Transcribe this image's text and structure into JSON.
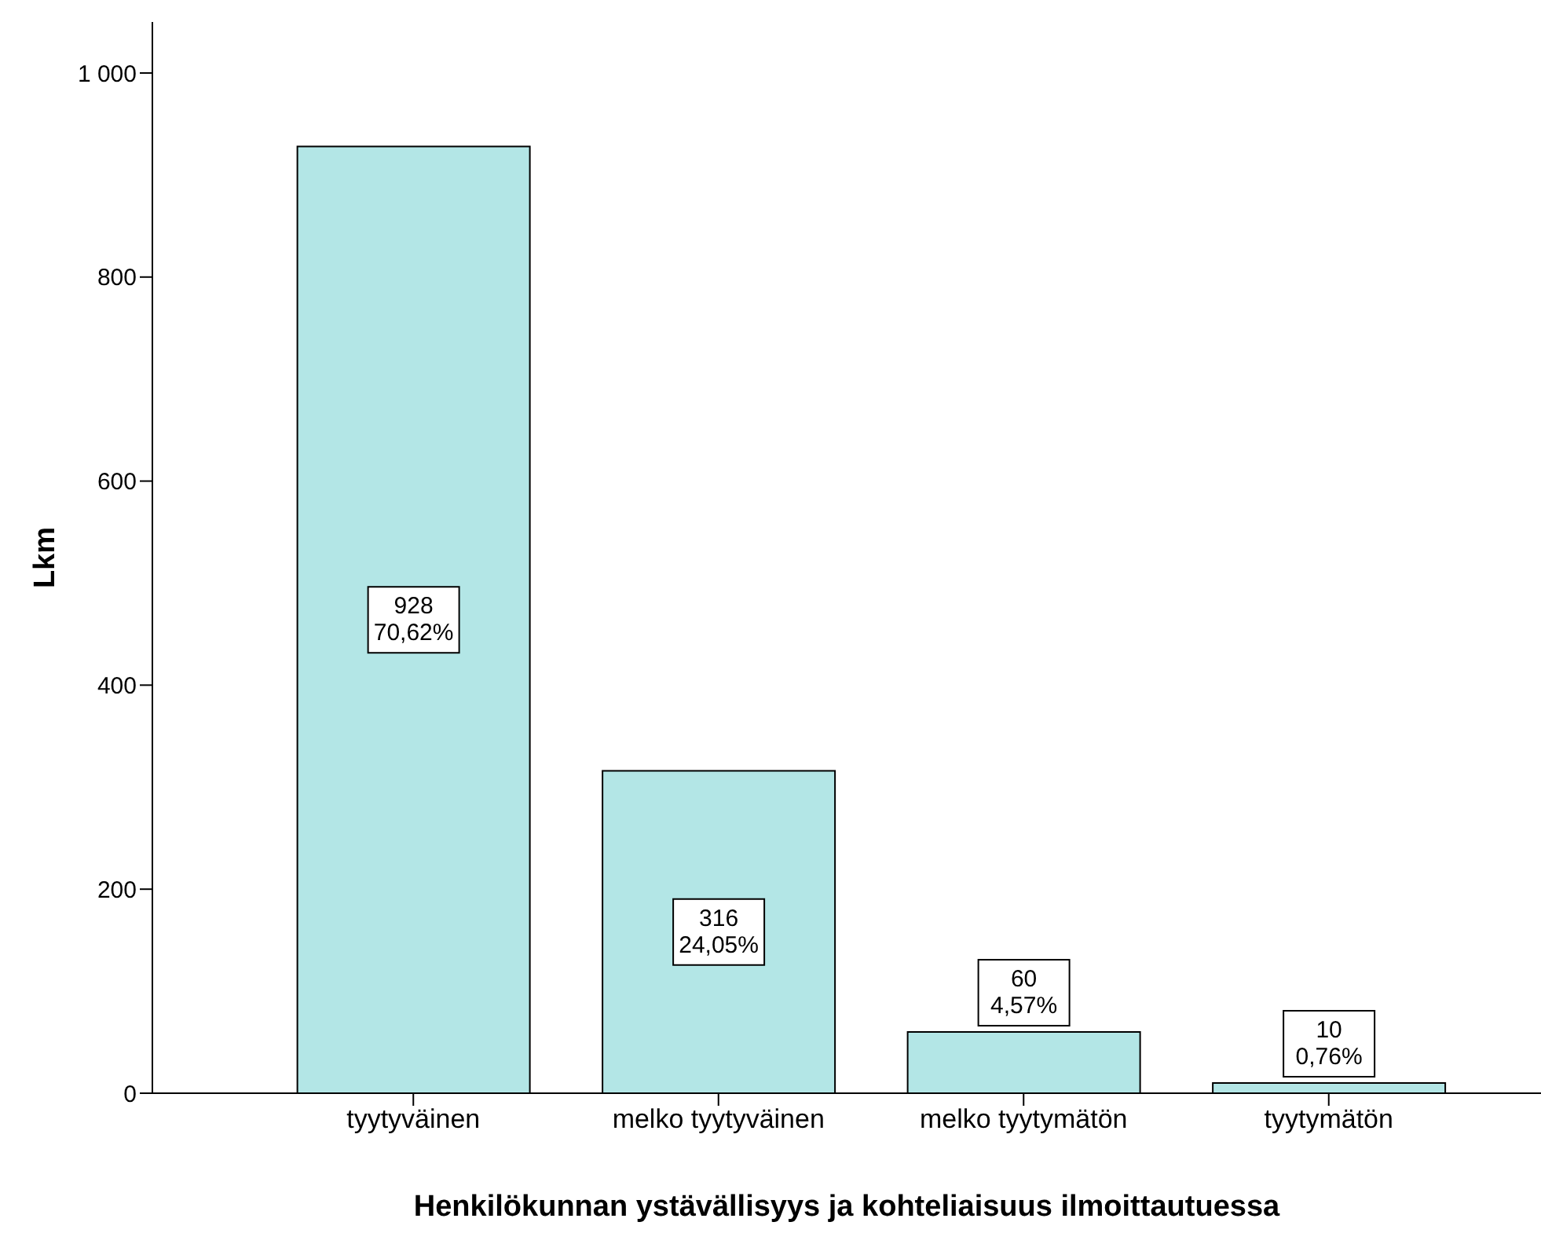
{
  "chart_data": {
    "type": "bar",
    "xlabel": "Henkilökunnan ystävällisyys ja kohteliaisuus ilmoittautuessa",
    "ylabel": "Lkm",
    "categories": [
      "tyytyväinen",
      "melko tyytyväinen",
      "melko tyytymätön",
      "tyytymätön"
    ],
    "values": [
      928,
      316,
      60,
      10
    ],
    "value_labels": [
      "928\n70,62%",
      "316\n24,05%",
      "60\n4,57%",
      "10\n0,76%"
    ],
    "color": "#b3e6e6",
    "ylim": [
      0,
      1050
    ],
    "yticks": [
      0,
      200,
      400,
      600,
      800,
      {
        "value": 1000,
        "label": "1 000"
      }
    ],
    "grid": false,
    "legend": false
  }
}
